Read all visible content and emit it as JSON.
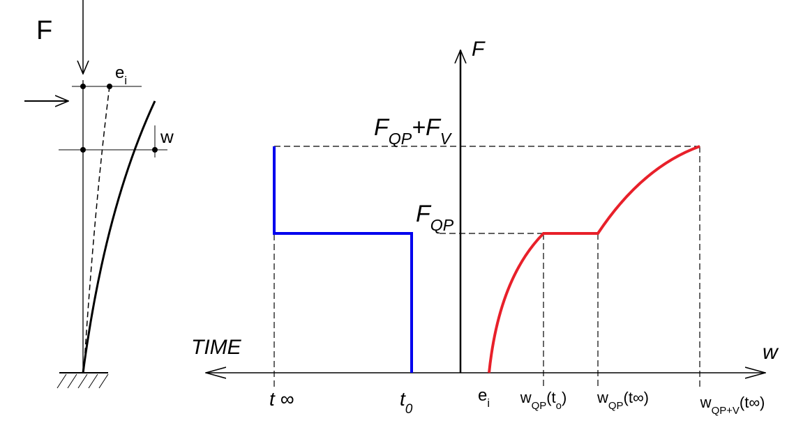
{
  "column": {
    "force_label": [
      {
        "t": "F"
      }
    ],
    "eccentricity": [
      {
        "t": "e"
      },
      {
        "t": "i",
        "sub": true
      }
    ],
    "deflection": [
      {
        "t": "w"
      }
    ]
  },
  "graph": {
    "y_axis": [
      {
        "t": "F"
      }
    ],
    "x_axis": [
      {
        "t": "w"
      }
    ],
    "time_axis": [
      {
        "t": "TIME"
      }
    ],
    "f_total": [
      {
        "t": "F"
      },
      {
        "t": "QP",
        "sub": true
      },
      {
        "t": "+F"
      },
      {
        "t": "V",
        "sub": true
      }
    ],
    "f_qp": [
      {
        "t": "F"
      },
      {
        "t": "QP",
        "sub": true
      }
    ],
    "t_inf": [
      {
        "t": "t ∞"
      }
    ],
    "t_0": [
      {
        "t": "t"
      },
      {
        "t": "0",
        "sub": true
      }
    ],
    "e_i": [
      {
        "t": "e"
      },
      {
        "t": "i",
        "sub": true
      }
    ],
    "w_qp_t0": [
      {
        "t": "w"
      },
      {
        "t": "QP",
        "sub": true
      },
      {
        "t": "(t"
      },
      {
        "t": "o",
        "sub": true
      },
      {
        "t": ")"
      }
    ],
    "w_qp_tinf": [
      {
        "t": "w"
      },
      {
        "t": "QP",
        "sub": true
      },
      {
        "t": "(t∞)"
      }
    ],
    "w_qpv_tinf": [
      {
        "t": "w"
      },
      {
        "t": "QP+V",
        "sub": true
      },
      {
        "t": "(t∞)"
      }
    ]
  }
}
